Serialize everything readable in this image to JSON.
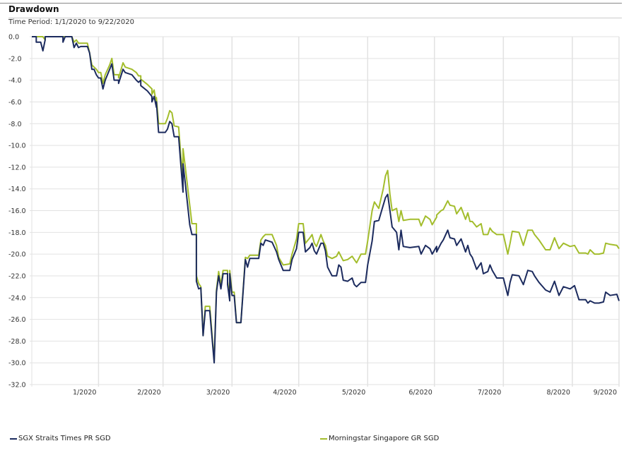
{
  "header": {
    "title": "Drawdown",
    "time_period": "Time Period: 1/1/2020 to 9/22/2020"
  },
  "chart_data": {
    "type": "line",
    "title": "Drawdown",
    "subtitle": "Time Period: 1/1/2020 to 9/22/2020",
    "xlabel": "",
    "ylabel": "",
    "x_unit": "days since 1/1/2020",
    "xlim": [
      0,
      264
    ],
    "ylim": [
      -32,
      0
    ],
    "yticks": [
      0,
      -2,
      -4,
      -6,
      -8,
      -10,
      -12,
      -14,
      -16,
      -18,
      -20,
      -22,
      -24,
      -26,
      -28,
      -30,
      -32
    ],
    "ytick_labels": [
      "0.0",
      "-2.0",
      "-4.0",
      "-6.0",
      "-8.0",
      "-10.0",
      "-12.0",
      "-14.0",
      "-16.0",
      "-18.0",
      "-20.0",
      "-22.0",
      "-24.0",
      "-26.0",
      "-28.0",
      "-30.0",
      "-32.0"
    ],
    "xticks": [
      {
        "day": 30,
        "label": "1/2020"
      },
      {
        "day": 59,
        "label": "2/2020"
      },
      {
        "day": 90,
        "label": "3/2020"
      },
      {
        "day": 120,
        "label": "4/2020"
      },
      {
        "day": 151,
        "label": "5/2020"
      },
      {
        "day": 181,
        "label": "6/2020"
      },
      {
        "day": 212,
        "label": "7/2020"
      },
      {
        "day": 243,
        "label": "8/2020"
      },
      {
        "day": 264,
        "label": "9/2020"
      }
    ],
    "grid": true,
    "legend_position": "bottom",
    "x": [
      0,
      2,
      2,
      4,
      5,
      6,
      6,
      14,
      14,
      15,
      18,
      19,
      20,
      21,
      22,
      25,
      26,
      27,
      28,
      29,
      30,
      31,
      32,
      33,
      35,
      36,
      37,
      39,
      39,
      41,
      42,
      45,
      47,
      48,
      49,
      49,
      52,
      54,
      54,
      55,
      56,
      56,
      57,
      60,
      61,
      62,
      63,
      64,
      66,
      67,
      68,
      68,
      69,
      71,
      72,
      74,
      74,
      75,
      76,
      77,
      78,
      80,
      82,
      83,
      84,
      85,
      86,
      88,
      88,
      89,
      89,
      90,
      91,
      92,
      94,
      96,
      97,
      98,
      102,
      103,
      104,
      105,
      108,
      110,
      111,
      113,
      116,
      117,
      119,
      120,
      122,
      123,
      125,
      126,
      127,
      128,
      130,
      131,
      132,
      133,
      135,
      137,
      138,
      139,
      140,
      142,
      144,
      145,
      146,
      148,
      150,
      151,
      153,
      154,
      156,
      158,
      159,
      160,
      161,
      162,
      164,
      165,
      166,
      167,
      170,
      174,
      175,
      177,
      179,
      180,
      182,
      182,
      184,
      185,
      187,
      188,
      190,
      191,
      193,
      195,
      196,
      197,
      198,
      200,
      202,
      203,
      205,
      206,
      207,
      209,
      212,
      214,
      215,
      216,
      219,
      221,
      223,
      225,
      226,
      228,
      231,
      233,
      235,
      237,
      239,
      242,
      244,
      246,
      249,
      250,
      251,
      253,
      255,
      257,
      258,
      260,
      263,
      264
    ],
    "series": [
      {
        "name": "SGX Straits Times PR SGD",
        "color": "#1c2b5e",
        "values": [
          0,
          0,
          -0.5,
          -0.5,
          -1.3,
          -0.3,
          0,
          0,
          -0.5,
          0,
          0,
          -1.0,
          -0.6,
          -1.0,
          -0.9,
          -0.9,
          -1.5,
          -3.0,
          -3.0,
          -3.5,
          -3.8,
          -3.8,
          -4.8,
          -4.0,
          -3.0,
          -2.5,
          -4.0,
          -4.0,
          -4.3,
          -3.0,
          -3.3,
          -3.5,
          -4.0,
          -4.2,
          -4.0,
          -4.5,
          -5.0,
          -5.5,
          -6.0,
          -5.5,
          -6.5,
          -6.0,
          -8.8,
          -8.8,
          -8.5,
          -7.8,
          -8.0,
          -9.2,
          -9.2,
          -11.8,
          -14.3,
          -11.7,
          -13.5,
          -17.3,
          -18.2,
          -18.2,
          -22.5,
          -23.2,
          -23.1,
          -27.5,
          -25.2,
          -25.2,
          -30.0,
          -23.5,
          -22.0,
          -23.2,
          -21.8,
          -21.8,
          -22.8,
          -24.3,
          -21.8,
          -23.8,
          -23.8,
          -26.3,
          -26.3,
          -20.5,
          -21.2,
          -20.4,
          -20.4,
          -19.0,
          -19.2,
          -18.7,
          -18.9,
          -19.8,
          -20.5,
          -21.5,
          -21.5,
          -20.5,
          -19.5,
          -18.0,
          -18.0,
          -19.8,
          -19.4,
          -19.0,
          -19.7,
          -20.0,
          -19.0,
          -19.0,
          -19.7,
          -21.2,
          -22.0,
          -22.0,
          -21.0,
          -21.2,
          -22.4,
          -22.5,
          -22.2,
          -22.8,
          -23.0,
          -22.6,
          -22.6,
          -21.0,
          -18.8,
          -17.0,
          -16.9,
          -15.5,
          -14.8,
          -14.5,
          -16.0,
          -17.5,
          -18.0,
          -19.6,
          -17.8,
          -19.3,
          -19.4,
          -19.3,
          -20.0,
          -19.2,
          -19.5,
          -20.0,
          -19.3,
          -19.8,
          -19.0,
          -18.7,
          -17.8,
          -18.5,
          -18.6,
          -19.2,
          -18.6,
          -19.8,
          -19.2,
          -20.0,
          -20.3,
          -21.4,
          -20.8,
          -21.8,
          -21.6,
          -21.0,
          -21.5,
          -22.2,
          -22.2,
          -23.8,
          -22.6,
          -21.9,
          -22.0,
          -22.8,
          -21.5,
          -21.6,
          -22.0,
          -22.6,
          -23.3,
          -23.5,
          -22.5,
          -23.8,
          -23.0,
          -23.2,
          -22.9,
          -24.2,
          -24.2,
          -24.5,
          -24.3,
          -24.5,
          -24.5,
          -24.4,
          -23.5,
          -23.8,
          -23.7,
          -24.3
        ]
      },
      {
        "name": "Morningstar Singapore GR SGD",
        "color": "#a3bd2c",
        "values": [
          0,
          0,
          0,
          0,
          0,
          -0.3,
          0,
          0,
          0,
          0,
          0,
          -0.5,
          -0.3,
          -0.6,
          -0.6,
          -0.6,
          -1.5,
          -2.6,
          -2.8,
          -3.0,
          -3.3,
          -3.3,
          -4.3,
          -3.5,
          -2.6,
          -2.0,
          -3.5,
          -3.5,
          -3.8,
          -2.4,
          -2.8,
          -3.0,
          -3.3,
          -3.6,
          -3.6,
          -3.9,
          -4.4,
          -4.8,
          -5.3,
          -4.9,
          -6.2,
          -5.6,
          -8.0,
          -8.0,
          -7.5,
          -6.8,
          -7.0,
          -8.2,
          -8.3,
          -11.0,
          -12.8,
          -10.3,
          -12.0,
          -15.5,
          -17.2,
          -17.2,
          -22.0,
          -22.7,
          -23.0,
          -27.5,
          -24.8,
          -24.8,
          -29.8,
          -23.3,
          -21.6,
          -22.8,
          -21.5,
          -21.5,
          -22.5,
          -24.0,
          -21.5,
          -23.5,
          -23.5,
          -26.3,
          -26.3,
          -20.3,
          -20.4,
          -20.1,
          -20.1,
          -18.7,
          -18.4,
          -18.2,
          -18.2,
          -19.2,
          -20.3,
          -21.0,
          -20.9,
          -20.0,
          -18.6,
          -17.2,
          -17.2,
          -19.0,
          -18.5,
          -18.2,
          -19.0,
          -19.3,
          -18.2,
          -18.8,
          -19.2,
          -20.2,
          -20.4,
          -20.2,
          -19.8,
          -20.2,
          -20.6,
          -20.5,
          -20.2,
          -20.5,
          -20.8,
          -20.0,
          -20.0,
          -18.8,
          -16.0,
          -15.2,
          -15.8,
          -14.0,
          -12.8,
          -12.3,
          -14.5,
          -16.0,
          -15.8,
          -17.0,
          -16.0,
          -16.9,
          -16.8,
          -16.8,
          -17.4,
          -16.5,
          -16.8,
          -17.3,
          -16.6,
          -16.4,
          -16.0,
          -15.9,
          -15.1,
          -15.5,
          -15.6,
          -16.3,
          -15.7,
          -16.8,
          -16.2,
          -17.0,
          -17.0,
          -17.5,
          -17.2,
          -18.2,
          -18.2,
          -17.6,
          -17.9,
          -18.2,
          -18.2,
          -20.0,
          -19.0,
          -17.9,
          -18.0,
          -19.2,
          -17.8,
          -17.8,
          -18.2,
          -18.7,
          -19.6,
          -19.6,
          -18.5,
          -19.5,
          -19.0,
          -19.3,
          -19.2,
          -19.9,
          -19.9,
          -20.0,
          -19.6,
          -20.0,
          -20.0,
          -19.9,
          -19.0,
          -19.1,
          -19.2,
          -19.5
        ]
      }
    ]
  }
}
